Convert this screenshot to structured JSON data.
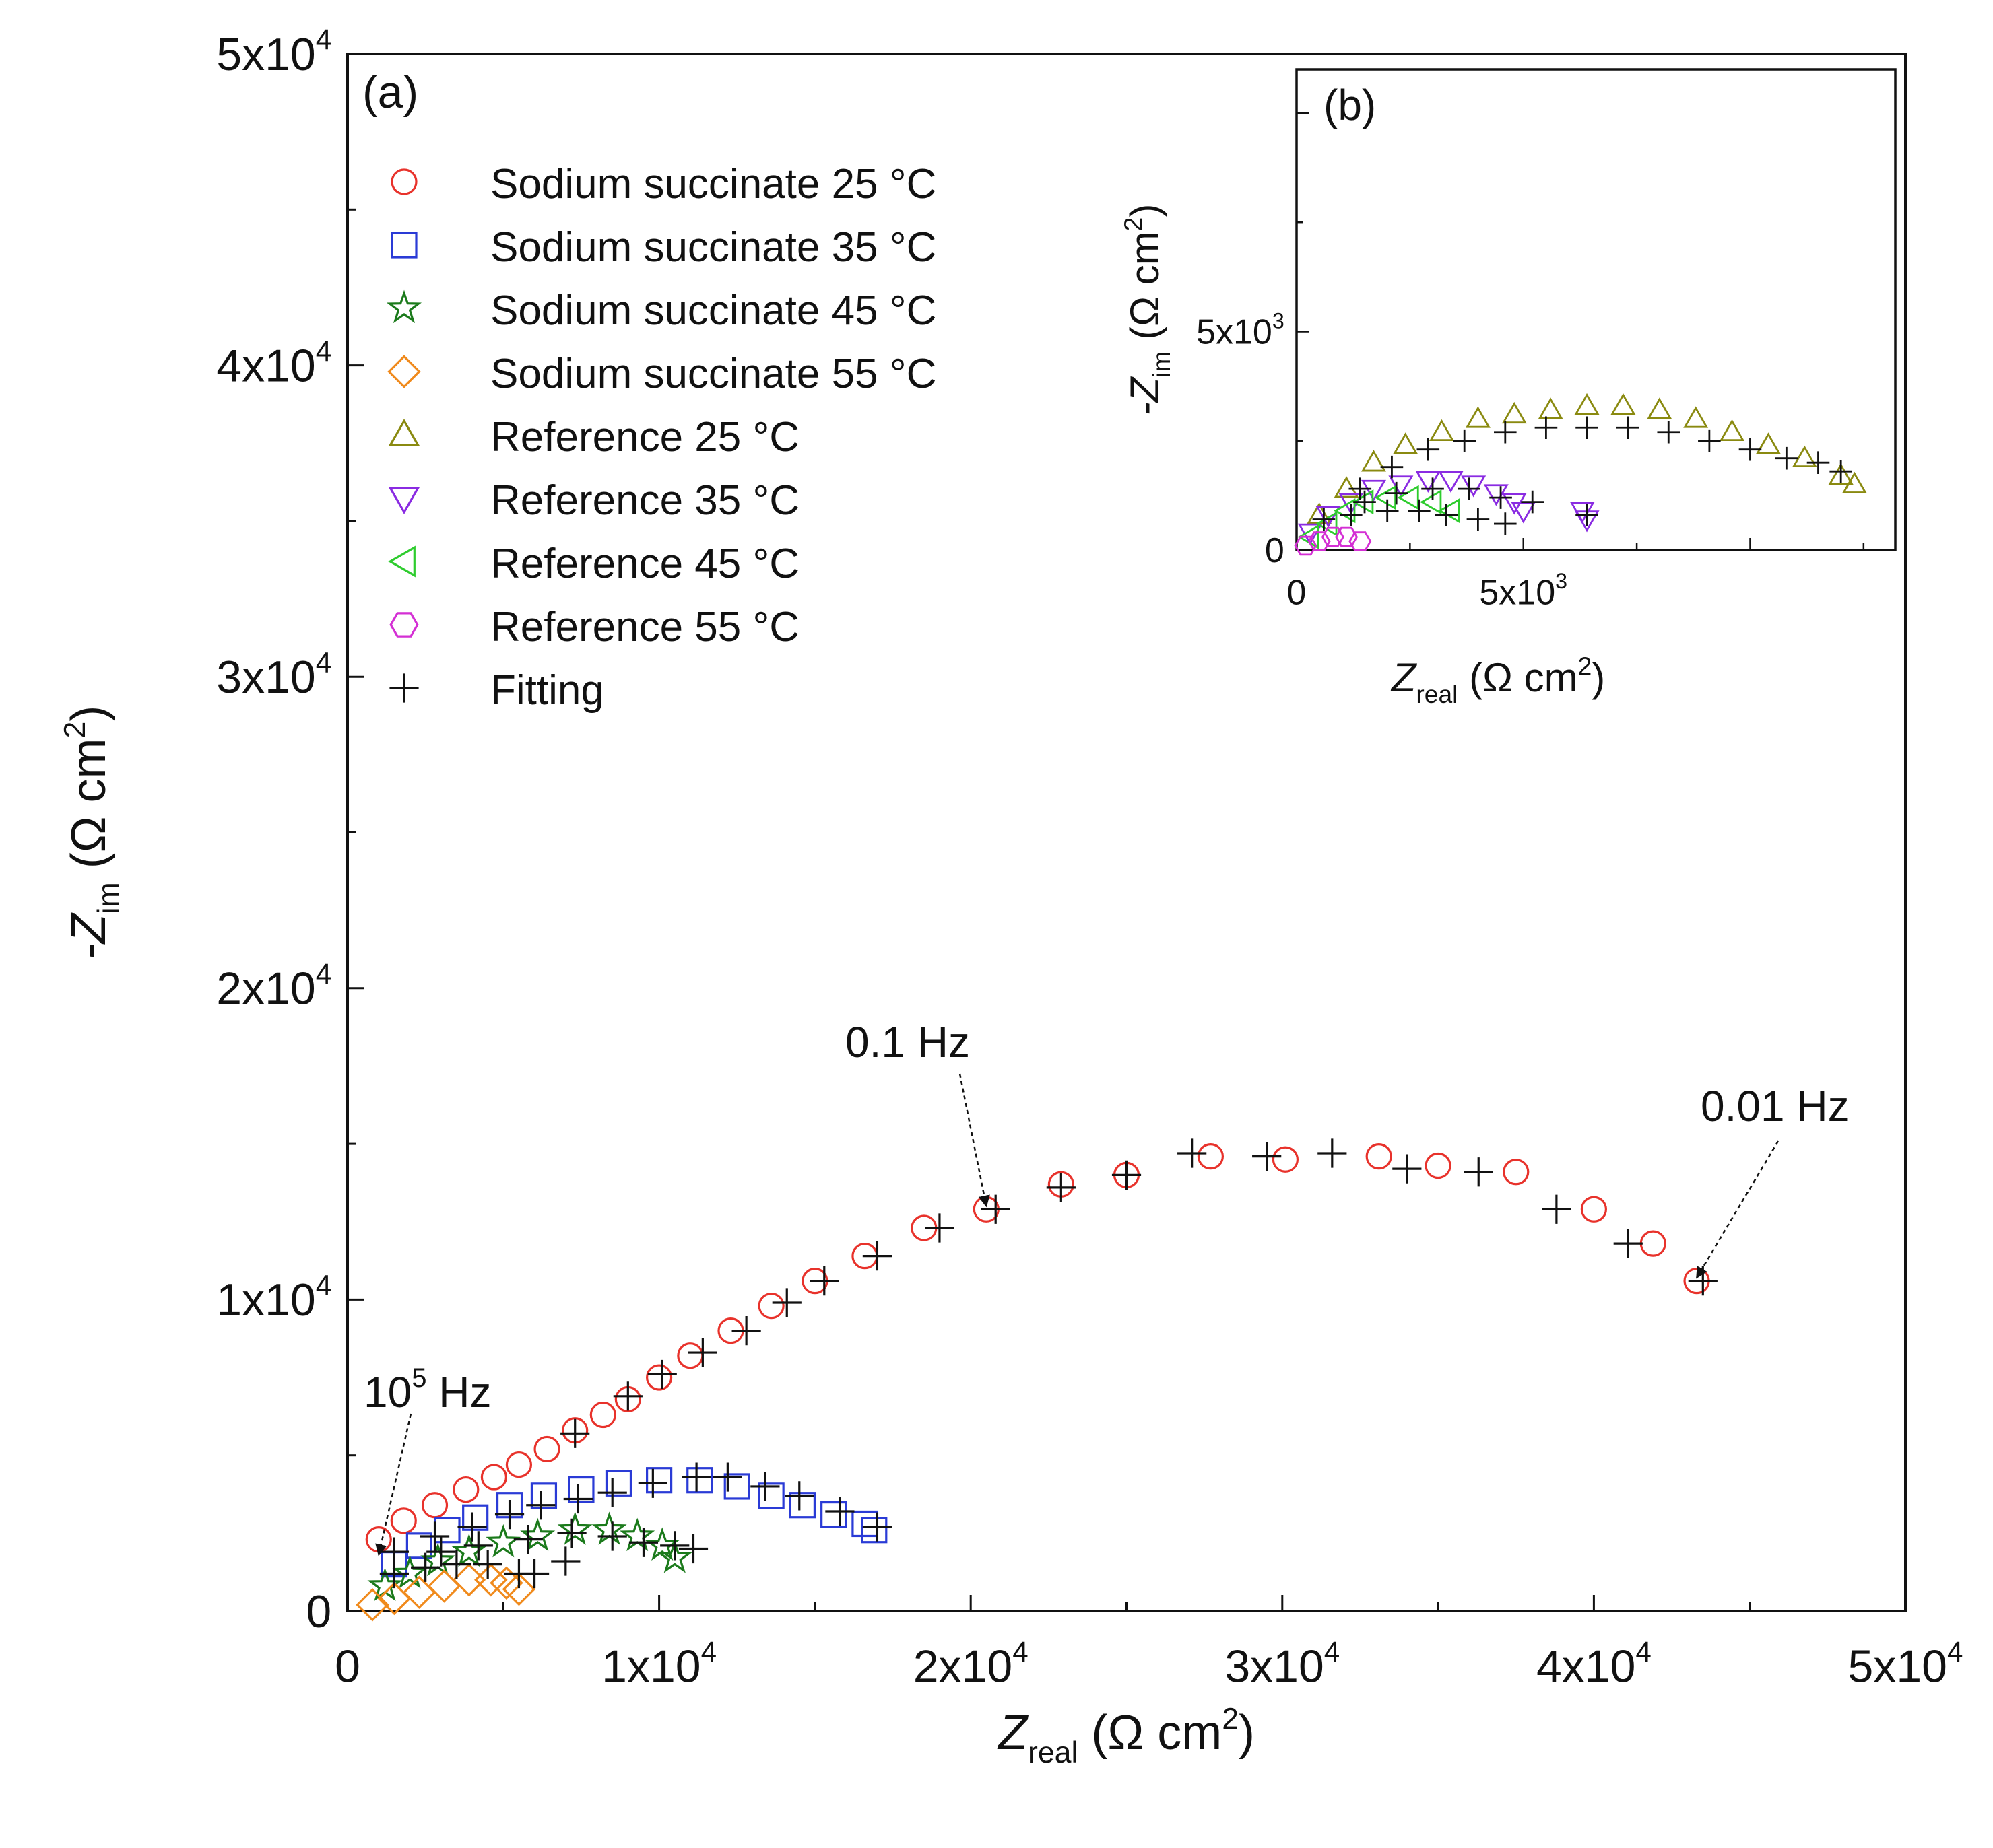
{
  "chart_data": [
    {
      "panel": "(a)",
      "type": "scatter",
      "title": "",
      "xlabel_main": "Z",
      "xlabel_sub": "real",
      "xlabel_unit": "(Ω  cm",
      "xlabel_sup": "2",
      "xlabel_close": ")",
      "ylabel_main": "-Z",
      "ylabel_sub": "im",
      "ylabel_unit": "(Ω  cm",
      "ylabel_sup": "2",
      "ylabel_close": ")",
      "xlim": [
        0,
        50000
      ],
      "ylim": [
        0,
        50000
      ],
      "x_ticks": [
        {
          "v": 0,
          "m": "0",
          "e": ""
        },
        {
          "v": 10000,
          "m": "1x10",
          "e": "4"
        },
        {
          "v": 20000,
          "m": "2x10",
          "e": "4"
        },
        {
          "v": 30000,
          "m": "3x10",
          "e": "4"
        },
        {
          "v": 40000,
          "m": "4x10",
          "e": "4"
        },
        {
          "v": 50000,
          "m": "5x10",
          "e": "4"
        }
      ],
      "y_ticks": [
        {
          "v": 0,
          "m": "0",
          "e": ""
        },
        {
          "v": 10000,
          "m": "1x10",
          "e": "4"
        },
        {
          "v": 20000,
          "m": "2x10",
          "e": "4"
        },
        {
          "v": 30000,
          "m": "3x10",
          "e": "4"
        },
        {
          "v": 40000,
          "m": "4x10",
          "e": "4"
        },
        {
          "v": 50000,
          "m": "5x10",
          "e": "4"
        }
      ],
      "legend": [
        {
          "label": "Sodium succinate 25 °C",
          "marker": "circle",
          "color": "#e8322b"
        },
        {
          "label": "Sodium succinate 35 °C",
          "marker": "square",
          "color": "#2a3bd6"
        },
        {
          "label": "Sodium succinate 45 °C",
          "marker": "star",
          "color": "#1b7a1b"
        },
        {
          "label": "Sodium succinate 55 °C",
          "marker": "diamond",
          "color": "#f08a1c"
        },
        {
          "label": "Reference 25 °C",
          "marker": "triangle-up",
          "color": "#8a8a10"
        },
        {
          "label": "Reference 35 °C",
          "marker": "triangle-down",
          "color": "#8a2be2"
        },
        {
          "label": "Reference 45 °C",
          "marker": "triangle-left",
          "color": "#2ecc2e"
        },
        {
          "label": "Reference 55 °C",
          "marker": "hexagon",
          "color": "#d42fd4"
        },
        {
          "label": "Fitting",
          "marker": "plus",
          "color": "#111111"
        }
      ],
      "series": [
        {
          "name": "Sodium succinate 25 °C",
          "marker": "circle",
          "color": "#e8322b",
          "points": [
            [
              1000,
              2300
            ],
            [
              1800,
              2900
            ],
            [
              2800,
              3400
            ],
            [
              3800,
              3900
            ],
            [
              4700,
              4300
            ],
            [
              5500,
              4700
            ],
            [
              6400,
              5200
            ],
            [
              7300,
              5800
            ],
            [
              8200,
              6300
            ],
            [
              9000,
              6800
            ],
            [
              10000,
              7500
            ],
            [
              11000,
              8200
            ],
            [
              12300,
              9000
            ],
            [
              13600,
              9800
            ],
            [
              15000,
              10600
            ],
            [
              16600,
              11400
            ],
            [
              18500,
              12300
            ],
            [
              20500,
              12900
            ],
            [
              22900,
              13700
            ],
            [
              25000,
              14000
            ],
            [
              27700,
              14600
            ],
            [
              30100,
              14500
            ],
            [
              33100,
              14600
            ],
            [
              35000,
              14300
            ],
            [
              37500,
              14100
            ],
            [
              40000,
              12900
            ],
            [
              41900,
              11800
            ],
            [
              43300,
              10600
            ]
          ]
        },
        {
          "name": "Sodium succinate 35 °C",
          "marker": "square",
          "color": "#2a3bd6",
          "points": [
            [
              1500,
              1500
            ],
            [
              2300,
              2100
            ],
            [
              3200,
              2600
            ],
            [
              4100,
              3000
            ],
            [
              5200,
              3400
            ],
            [
              6300,
              3700
            ],
            [
              7500,
              3900
            ],
            [
              8700,
              4100
            ],
            [
              10000,
              4200
            ],
            [
              11300,
              4200
            ],
            [
              12500,
              4000
            ],
            [
              13600,
              3700
            ],
            [
              14600,
              3400
            ],
            [
              15600,
              3100
            ],
            [
              16600,
              2800
            ],
            [
              16900,
              2600
            ]
          ]
        },
        {
          "name": "Sodium succinate 45 °C",
          "marker": "star",
          "color": "#1b7a1b",
          "points": [
            [
              1200,
              800
            ],
            [
              2000,
              1200
            ],
            [
              2900,
              1600
            ],
            [
              3900,
              1900
            ],
            [
              5000,
              2200
            ],
            [
              6100,
              2400
            ],
            [
              7300,
              2600
            ],
            [
              8400,
              2600
            ],
            [
              9300,
              2400
            ],
            [
              10100,
              2100
            ],
            [
              10500,
              1700
            ]
          ]
        },
        {
          "name": "Sodium succinate 55 °C",
          "marker": "diamond",
          "color": "#f08a1c",
          "points": [
            [
              800,
              200
            ],
            [
              1500,
              400
            ],
            [
              2300,
              600
            ],
            [
              3100,
              800
            ],
            [
              3900,
              1000
            ],
            [
              4600,
              1000
            ],
            [
              5100,
              900
            ],
            [
              5500,
              700
            ]
          ]
        },
        {
          "name": "Fitting",
          "marker": "plus",
          "color": "#111111",
          "points": [
            [
              7300,
              5700
            ],
            [
              9000,
              6900
            ],
            [
              10100,
              7600
            ],
            [
              11400,
              8300
            ],
            [
              12800,
              9000
            ],
            [
              14100,
              9900
            ],
            [
              15300,
              10600
            ],
            [
              17000,
              11400
            ],
            [
              19000,
              12300
            ],
            [
              20800,
              12900
            ],
            [
              22900,
              13600
            ],
            [
              25000,
              14000
            ],
            [
              27100,
              14700
            ],
            [
              29500,
              14600
            ],
            [
              31600,
              14700
            ],
            [
              34000,
              14200
            ],
            [
              36300,
              14100
            ],
            [
              38800,
              12900
            ],
            [
              41100,
              11800
            ],
            [
              43500,
              10600
            ],
            [
              9800,
              4100
            ],
            [
              11200,
              4300
            ],
            [
              12200,
              4300
            ],
            [
              13400,
              4000
            ],
            [
              14500,
              3700
            ],
            [
              15800,
              3200
            ],
            [
              17000,
              2700
            ],
            [
              1500,
              1200
            ],
            [
              2500,
              1400
            ],
            [
              3500,
              1500
            ],
            [
              4500,
              1500
            ],
            [
              5500,
              1200
            ],
            [
              1500,
              1900
            ],
            [
              2800,
              2400
            ],
            [
              4000,
              2700
            ],
            [
              5200,
              3100
            ],
            [
              6200,
              3400
            ],
            [
              7400,
              3600
            ],
            [
              8500,
              3800
            ],
            [
              3000,
              1900
            ],
            [
              4200,
              2100
            ],
            [
              5800,
              2300
            ],
            [
              7200,
              2500
            ],
            [
              8500,
              2400
            ],
            [
              9500,
              2200
            ],
            [
              10500,
              2100
            ],
            [
              11100,
              2000
            ],
            [
              6000,
              1200
            ],
            [
              7000,
              1600
            ]
          ]
        }
      ],
      "annotations": [
        {
          "text_main": "10",
          "text_sup": "5",
          "text_tail": " Hz",
          "x_data": 1000,
          "y_data": 1800
        },
        {
          "text_main": "0.1 Hz",
          "x_data": 20500,
          "y_data": 13000
        },
        {
          "text_main": "0.01 Hz",
          "x_data": 43300,
          "y_data": 10700
        }
      ]
    },
    {
      "panel": "(b)",
      "type": "scatter",
      "xlabel_main": "Z",
      "xlabel_sub": "real",
      "xlabel_unit": "(Ω  cm",
      "xlabel_sup": "2",
      "xlabel_close": ")",
      "ylabel_main": "-Z",
      "ylabel_sub": "im",
      "ylabel_unit": "(Ω  cm",
      "ylabel_sup": "2",
      "ylabel_close": ")",
      "xlim": [
        0,
        13200
      ],
      "ylim": [
        0,
        11000
      ],
      "x_ticks": [
        {
          "v": 0,
          "m": "0",
          "e": ""
        },
        {
          "v": 5000,
          "m": "5x10",
          "e": "3"
        }
      ],
      "y_ticks": [
        {
          "v": 0,
          "m": "0",
          "e": ""
        },
        {
          "v": 5000,
          "m": "5x10",
          "e": "3"
        }
      ],
      "series": [
        {
          "name": "Reference 25 °C",
          "marker": "triangle-up",
          "color": "#8a8a10",
          "points": [
            [
              500,
              800
            ],
            [
              1100,
              1400
            ],
            [
              1700,
              2000
            ],
            [
              2400,
              2400
            ],
            [
              3200,
              2700
            ],
            [
              4000,
              3000
            ],
            [
              4800,
              3100
            ],
            [
              5600,
              3200
            ],
            [
              6400,
              3300
            ],
            [
              7200,
              3300
            ],
            [
              8000,
              3200
            ],
            [
              8800,
              3000
            ],
            [
              9600,
              2700
            ],
            [
              10400,
              2400
            ],
            [
              11200,
              2100
            ],
            [
              12000,
              1700
            ],
            [
              12300,
              1500
            ]
          ]
        },
        {
          "name": "Reference 35 °C",
          "marker": "triangle-down",
          "color": "#8a2be2",
          "points": [
            [
              300,
              400
            ],
            [
              700,
              800
            ],
            [
              1200,
              1100
            ],
            [
              1700,
              1400
            ],
            [
              2300,
              1500
            ],
            [
              2900,
              1600
            ],
            [
              3400,
              1600
            ],
            [
              3900,
              1500
            ],
            [
              4400,
              1300
            ],
            [
              4800,
              1100
            ],
            [
              5000,
              900
            ],
            [
              6300,
              900
            ],
            [
              6400,
              700
            ]
          ]
        },
        {
          "name": "Reference 45 °C",
          "marker": "triangle-left",
          "color": "#2ecc2e",
          "points": [
            [
              300,
              300
            ],
            [
              700,
              600
            ],
            [
              1100,
              900
            ],
            [
              1500,
              1100
            ],
            [
              2000,
              1200
            ],
            [
              2500,
              1200
            ],
            [
              3000,
              1100
            ],
            [
              3400,
              900
            ]
          ]
        },
        {
          "name": "Reference 55 °C",
          "marker": "hexagon",
          "color": "#d42fd4",
          "points": [
            [
              200,
              100
            ],
            [
              500,
              200
            ],
            [
              800,
              300
            ],
            [
              1100,
              300
            ],
            [
              1400,
              200
            ]
          ]
        },
        {
          "name": "Fitting",
          "marker": "plus",
          "color": "#111111",
          "points": [
            [
              600,
              700
            ],
            [
              1400,
              1400
            ],
            [
              2100,
              1900
            ],
            [
              2900,
              2300
            ],
            [
              3700,
              2500
            ],
            [
              4600,
              2700
            ],
            [
              5500,
              2800
            ],
            [
              6400,
              2800
            ],
            [
              7300,
              2800
            ],
            [
              8200,
              2700
            ],
            [
              9100,
              2500
            ],
            [
              10000,
              2300
            ],
            [
              10800,
              2100
            ],
            [
              11500,
              2000
            ],
            [
              12000,
              1800
            ],
            [
              1500,
              1100
            ],
            [
              2200,
              1300
            ],
            [
              3000,
              1400
            ],
            [
              3800,
              1400
            ],
            [
              4500,
              1200
            ],
            [
              5200,
              1100
            ],
            [
              6400,
              800
            ],
            [
              1200,
              800
            ],
            [
              2000,
              900
            ],
            [
              2700,
              900
            ],
            [
              3300,
              800
            ],
            [
              4000,
              700
            ],
            [
              4600,
              600
            ]
          ]
        }
      ]
    }
  ]
}
